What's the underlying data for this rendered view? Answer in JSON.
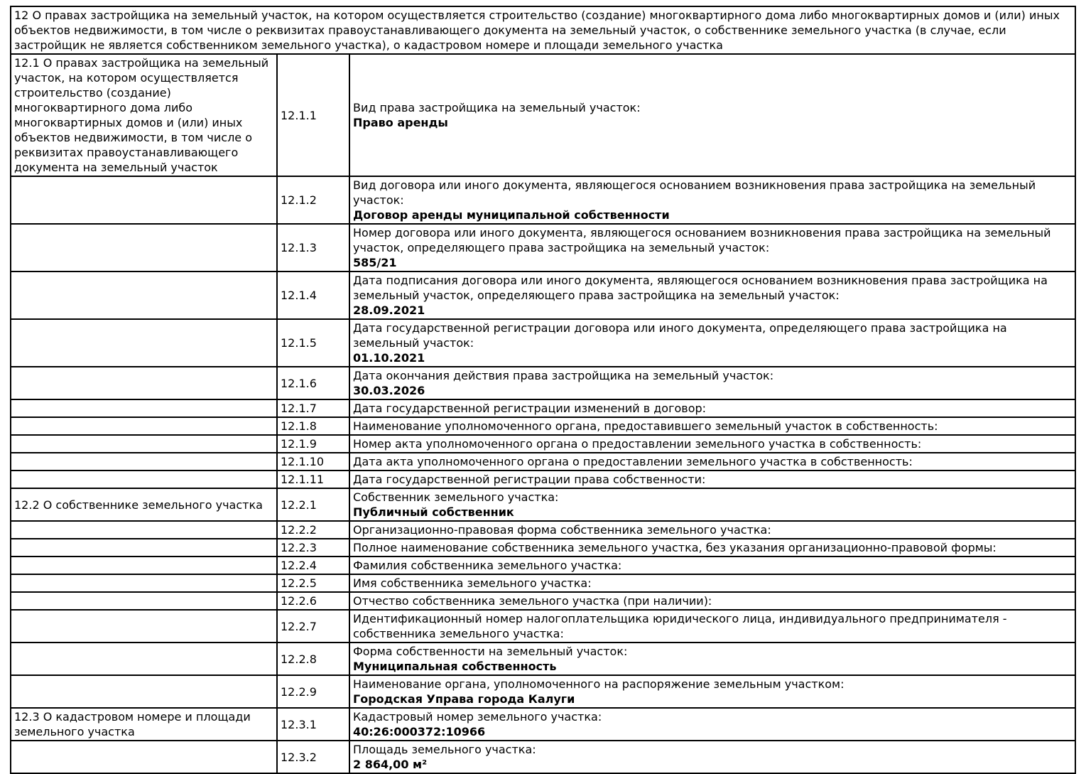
{
  "table": {
    "header": "12 О правах застройщика на земельный участок, на котором осуществляется строительство (создание) многоквартирного дома либо многоквартирных домов и (или) иных объектов недвижимости, в том числе о реквизитах правоустанавливающего документа на земельный участок, о собственнике земельного участка (в случае, если застройщик не является собственником земельного участка), о кадастровом номере и площади земельного участка",
    "rows": [
      {
        "section": "12.1 О правах застройщика на земельный участок, на котором осуществляется строительство (создание) многоквартирного дома либо многоквартирных домов и (или) иных объектов недвижимости, в том числе о реквизитах правоустанавливающего документа на земельный участок",
        "code": "12.1.1",
        "label": "Вид права застройщика на земельный участок:",
        "value": "Право аренды"
      },
      {
        "section": "",
        "code": "12.1.2",
        "label": "Вид договора или иного документа, являющегося основанием возникновения права застройщика на земельный участок:",
        "value": "Договор аренды муниципальной собственности"
      },
      {
        "section": "",
        "code": "12.1.3",
        "label": "Номер договора или иного документа, являющегося основанием возникновения права застройщика на земельный участок, определяющего права застройщика на земельный участок:",
        "value": "585/21"
      },
      {
        "section": "",
        "code": "12.1.4",
        "label": "Дата подписания договора или иного документа, являющегося основанием возникновения права застройщика на земельный участок, определяющего права застройщика на земельный участок:",
        "value": "28.09.2021"
      },
      {
        "section": "",
        "code": "12.1.5",
        "label": "Дата государственной регистрации договора или иного документа, определяющего права застройщика на земельный участок:",
        "value": "01.10.2021"
      },
      {
        "section": "",
        "code": "12.1.6",
        "label": "Дата окончания действия права застройщика на земельный участок:",
        "value": "30.03.2026"
      },
      {
        "section": "",
        "code": "12.1.7",
        "label": "Дата государственной регистрации изменений в договор:",
        "value": ""
      },
      {
        "section": "",
        "code": "12.1.8",
        "label": "Наименование уполномоченного органа, предоставившего земельный участок в собственность:",
        "value": ""
      },
      {
        "section": "",
        "code": "12.1.9",
        "label": "Номер акта уполномоченного органа о предоставлении земельного участка в собственность:",
        "value": ""
      },
      {
        "section": "",
        "code": "12.1.10",
        "label": "Дата акта уполномоченного органа о предоставлении земельного участка в собственность:",
        "value": ""
      },
      {
        "section": "",
        "code": "12.1.11",
        "label": "Дата государственной регистрации права собственности:",
        "value": ""
      },
      {
        "section": "12.2 О собственнике земельного участка",
        "code": "12.2.1",
        "label": "Собственник земельного участка:",
        "value": "Публичный собственник"
      },
      {
        "section": "",
        "code": "12.2.2",
        "label": "Организационно-правовая форма собственника земельного участка:",
        "value": ""
      },
      {
        "section": "",
        "code": "12.2.3",
        "label": "Полное наименование собственника земельного участка, без указания организационно-правовой формы:",
        "value": ""
      },
      {
        "section": "",
        "code": "12.2.4",
        "label": "Фамилия собственника земельного участка:",
        "value": ""
      },
      {
        "section": "",
        "code": "12.2.5",
        "label": "Имя собственника земельного участка:",
        "value": ""
      },
      {
        "section": "",
        "code": "12.2.6",
        "label": "Отчество собственника земельного участка (при наличии):",
        "value": ""
      },
      {
        "section": "",
        "code": "12.2.7",
        "label": "Идентификационный номер налогоплательщика юридического лица, индивидуального предпринимателя - собственника земельного участка:",
        "value": ""
      },
      {
        "section": "",
        "code": "12.2.8",
        "label": "Форма собственности на земельный участок:",
        "value": "Муниципальная собственность"
      },
      {
        "section": "",
        "code": "12.2.9",
        "label": "Наименование органа, уполномоченного на распоряжение земельным участком:",
        "value": "Городская Управа города Калуги"
      },
      {
        "section": "12.3 О кадастровом номере и площади земельного участка",
        "code": "12.3.1",
        "label": "Кадастровый номер земельного участка:",
        "value": "40:26:000372:10966"
      },
      {
        "section": "",
        "code": "12.3.2",
        "label": "Площадь земельного участка:",
        "value": "2 864,00 м²"
      }
    ]
  }
}
